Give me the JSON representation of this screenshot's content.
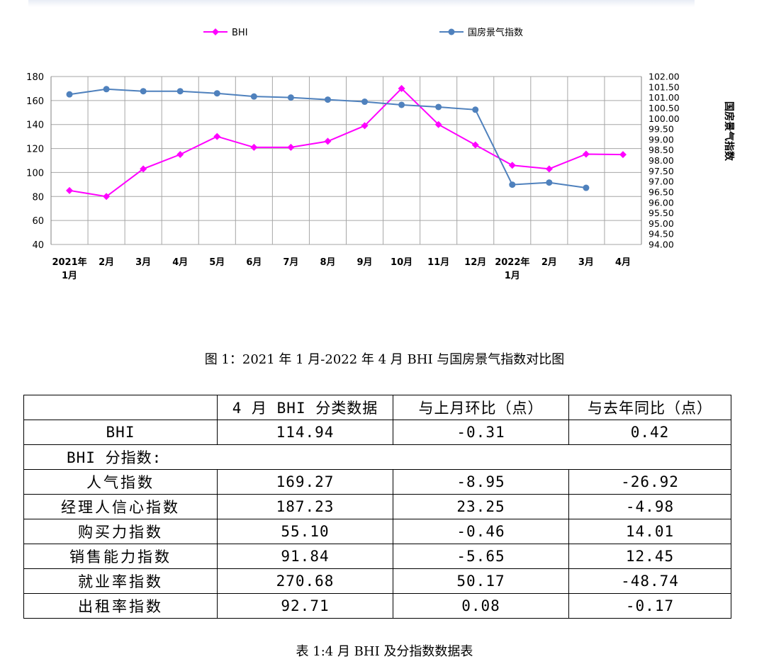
{
  "chart_data": {
    "type": "line",
    "categories": [
      "2021年\n1月",
      "2月",
      "3月",
      "4月",
      "5月",
      "6月",
      "7月",
      "8月",
      "9月",
      "10月",
      "11月",
      "12月",
      "2022年\n1月",
      "2月",
      "3月",
      "4月"
    ],
    "series": [
      {
        "name": "BHI",
        "axis": "left",
        "color": "#ff00ff",
        "marker": "diamond",
        "values": [
          85,
          80,
          103,
          115,
          130,
          121,
          121,
          126,
          139,
          170,
          140,
          123,
          106,
          103,
          115.3,
          114.94
        ]
      },
      {
        "name": "国房景气指数",
        "axis": "right",
        "color": "#4f81bd",
        "marker": "circle",
        "values": [
          101.15,
          101.4,
          101.3,
          101.3,
          101.2,
          101.05,
          101.0,
          100.9,
          100.8,
          100.65,
          100.55,
          100.42,
          96.85,
          96.95,
          96.7,
          null
        ]
      }
    ],
    "left_axis": {
      "min": 40,
      "max": 180,
      "step": 20
    },
    "right_axis": {
      "min": 94.0,
      "max": 102.0,
      "step": 0.5
    },
    "right_axis_label": "国房景气指数",
    "grid": true,
    "legend_position": "top"
  },
  "figure_caption": "图 1：2021 年 1 月-2022 年 4 月 BHI 与国房景气指数对比图",
  "table": {
    "headers": [
      "",
      "4 月 BHI 分类数据",
      "与上月环比（点）",
      "与去年同比（点）"
    ],
    "bhi_row": {
      "label": "BHI",
      "value": "114.94",
      "mom": "-0.31",
      "yoy": "0.42"
    },
    "subindex_title": "BHI 分指数:",
    "rows": [
      {
        "label": "人气指数",
        "value": "169.27",
        "mom": "-8.95",
        "yoy": "-26.92"
      },
      {
        "label": "经理人信心指数",
        "value": "187.23",
        "mom": "23.25",
        "yoy": "-4.98"
      },
      {
        "label": "购买力指数",
        "value": "55.10",
        "mom": "-0.46",
        "yoy": "14.01"
      },
      {
        "label": "销售能力指数",
        "value": "91.84",
        "mom": "-5.65",
        "yoy": "12.45"
      },
      {
        "label": "就业率指数",
        "value": "270.68",
        "mom": "50.17",
        "yoy": "-48.74"
      },
      {
        "label": "出租率指数",
        "value": "92.71",
        "mom": "0.08",
        "yoy": "-0.17"
      }
    ]
  },
  "table_caption": "表 1:4 月 BHI 及分指数数据表"
}
